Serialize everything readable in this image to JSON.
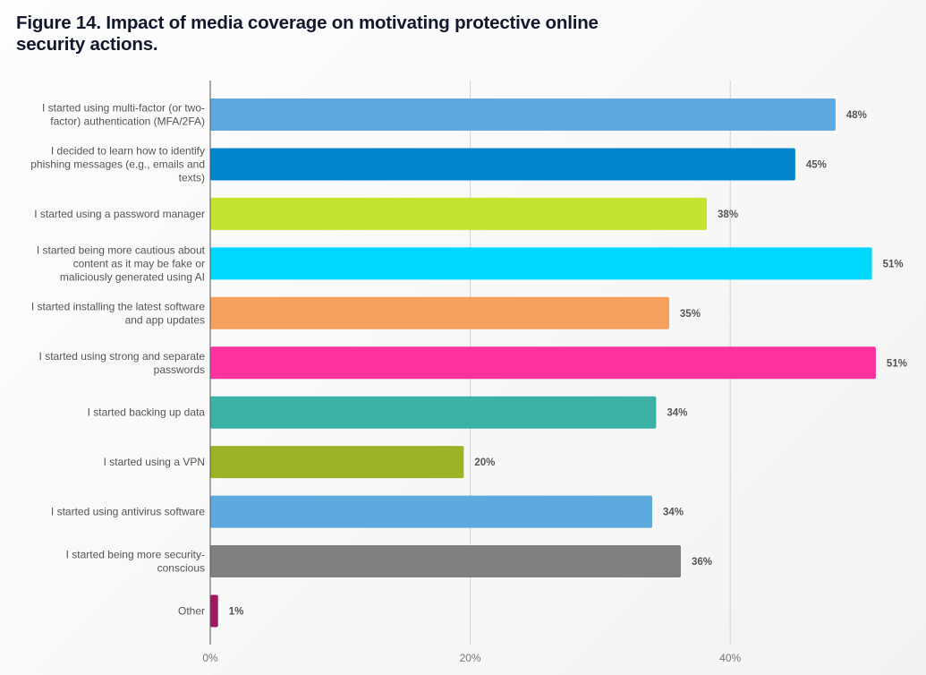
{
  "chart_data": {
    "type": "bar",
    "orientation": "horizontal",
    "title": "Figure 14. Impact of media coverage on motivating protective online security actions.",
    "xlabel": "",
    "ylabel": "",
    "xlim": [
      0,
      51
    ],
    "grid": true,
    "x_ticks": [
      "0%",
      "20%",
      "40%"
    ],
    "x_tick_values": [
      0,
      20,
      40
    ],
    "categories": [
      "I started using multi-factor (or two-factor) authentication (MFA/2FA)",
      "I decided to learn how to identify phishing messages (e.g., emails and texts)",
      "I started using a password manager",
      "I started being more cautious about content as it may be fake or maliciously generated using AI",
      "I started installing the latest software and app updates",
      "I started using strong and separate passwords",
      "I started backing up data",
      "I started using a VPN",
      "I started using antivirus software",
      "I started being more security-conscious",
      "Other"
    ],
    "category_lines": [
      [
        "I started using multi-factor (or two-",
        "factor) authentication (MFA/2FA)"
      ],
      [
        "I decided to learn how to identify",
        "phishing messages (e.g., emails and",
        "texts)"
      ],
      [
        "I started using a password manager"
      ],
      [
        "I started being more cautious about",
        "content as it may be fake or",
        "maliciously generated using AI"
      ],
      [
        "I started installing the latest software",
        "and app updates"
      ],
      [
        "I started using strong and separate",
        "passwords"
      ],
      [
        "I started backing up data"
      ],
      [
        "I started using a VPN"
      ],
      [
        "I started using antivirus software"
      ],
      [
        "I started being more security-",
        "conscious"
      ],
      [
        "Other"
      ]
    ],
    "values": [
      48,
      45,
      38,
      51,
      35,
      51,
      34,
      20,
      34,
      36,
      1
    ],
    "value_labels": [
      "48%",
      "45%",
      "38%",
      "51%",
      "35%",
      "51%",
      "34%",
      "20%",
      "34%",
      "36%",
      "1%"
    ],
    "colors": [
      "#5ea9dd",
      "#0085cc",
      "#c3e531",
      "#00d8ff",
      "#f5a05c",
      "#ff339f",
      "#3bb2a5",
      "#9cb227",
      "#5ea9dd",
      "#808080",
      "#a0195f"
    ],
    "bar_lengths_pct": [
      48.1,
      45.0,
      38.2,
      50.9,
      35.3,
      51.2,
      34.3,
      19.5,
      34.0,
      36.2,
      0.6
    ]
  }
}
